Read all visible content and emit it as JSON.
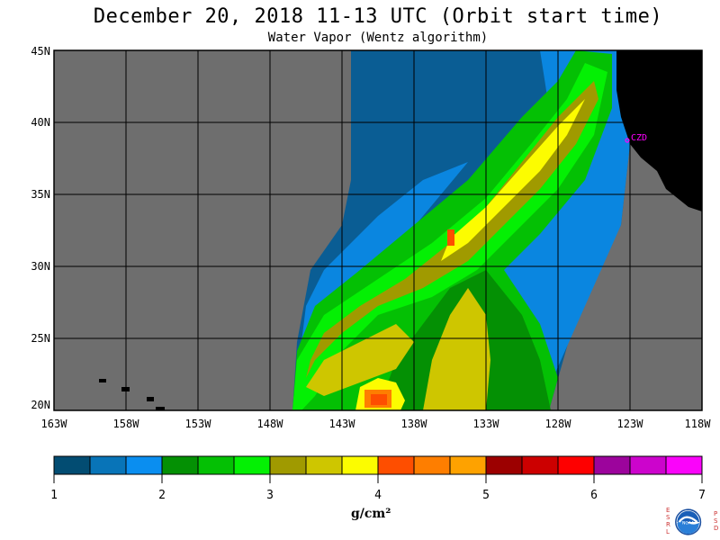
{
  "title": "December 20, 2018  11-13 UTC  (Orbit start time)",
  "subtitle": "Water Vapor (Wentz algorithm)",
  "map": {
    "lat_labels": [
      "45N",
      "40N",
      "35N",
      "30N",
      "25N",
      "20N"
    ],
    "lon_labels": [
      "163W",
      "158W",
      "153W",
      "148W",
      "143W",
      "138W",
      "133W",
      "128W",
      "123W",
      "118W"
    ],
    "station_label": "CZD"
  },
  "colorbar": {
    "colors": [
      "#024c72",
      "#0874b8",
      "#0a8ef0",
      "#049004",
      "#04c004",
      "#04f004",
      "#a09a00",
      "#cec600",
      "#fcfc00",
      "#fe4e00",
      "#fe7e00",
      "#fea200",
      "#9c0000",
      "#cc0000",
      "#fe0000",
      "#9c049c",
      "#cc04cc",
      "#fa04fa"
    ],
    "tick_labels": [
      "1",
      "2",
      "3",
      "4",
      "5",
      "6",
      "7"
    ],
    "units": "g/cm²"
  },
  "logo": {
    "left_letters": [
      "E",
      "S",
      "R",
      "L"
    ],
    "right_letters": [
      "P",
      "S",
      "D"
    ],
    "text": "NOAA"
  }
}
